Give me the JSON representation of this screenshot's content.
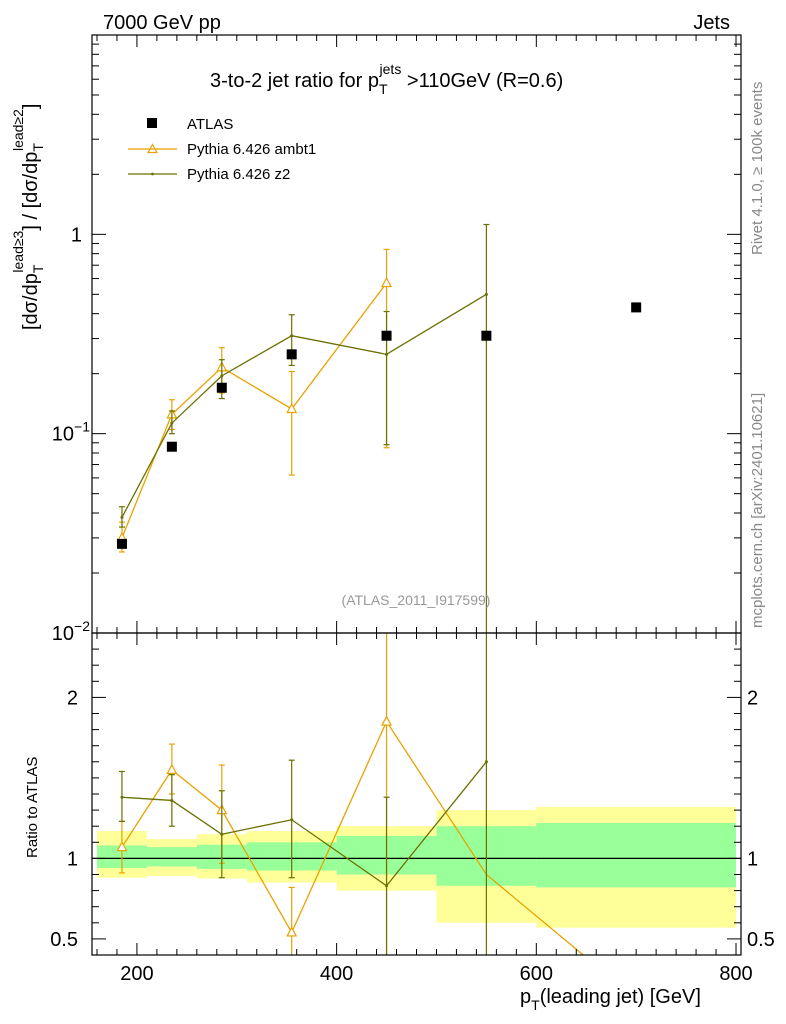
{
  "header": {
    "energy_label": "7000 GeV pp",
    "category_label": "Jets"
  },
  "side_labels": {
    "rivet": "Rivet 4.1.0, ≥ 100k events",
    "mcplots": "mcplots.cern.ch [arXiv:2401.10621]"
  },
  "chart_data": {
    "type": "scatter",
    "title": "3-to-2 jet ratio for p_T^jets > 110 GeV (R=0.6)",
    "title_parts": {
      "main": "3-to-2 jet ratio for p",
      "sub": "T",
      "sup": "jets",
      "rest": " >110GeV (R=0.6)"
    },
    "analysis_id": "(ATLAS_2011_I917599)",
    "xlabel": "p_T(leading jet) [GeV]",
    "xlabel_parts": {
      "main": "p",
      "sub": "T",
      "rest": "(leading jet) [GeV]"
    },
    "xlim": [
      155,
      805
    ],
    "x_ticks": [
      200,
      400,
      600,
      800
    ],
    "x_tick_labels": [
      "200",
      "400",
      "600",
      "800"
    ],
    "upper_panel": {
      "ylabel": "[dσ/dp_T^lead≥3] / [dσ/dp_T^lead≥2]",
      "ylabel_parts": {
        "open": "[dσ/dp",
        "sub": "T",
        "sup1": "lead≥3",
        "mid": "] / [dσ/dp",
        "sup2": "lead≥2",
        "close": "]"
      },
      "yscale": "log",
      "ylim": [
        0.01,
        10
      ],
      "y_ticks": [
        0.01,
        0.1,
        1
      ],
      "y_tick_labels": [
        {
          "base": "10",
          "exp": "−2"
        },
        {
          "base": "10",
          "exp": "−1"
        },
        {
          "base": "1",
          "exp": ""
        }
      ],
      "legend_position": "top-left"
    },
    "lower_panel": {
      "ylabel": "Ratio to ATLAS",
      "ylim": [
        0.4,
        2.4
      ],
      "y_ticks": [
        0.5,
        1,
        2
      ],
      "y_tick_labels": [
        "0.5",
        "1",
        "2"
      ]
    },
    "series": [
      {
        "name": "ATLAS",
        "kind": "data",
        "color": "#000000",
        "x": [
          185,
          235,
          285,
          355,
          450,
          550,
          700
        ],
        "y": [
          0.028,
          0.086,
          0.17,
          0.25,
          0.31,
          0.31,
          0.43
        ]
      },
      {
        "name": "Pythia 6.426 ambt1",
        "kind": "mc",
        "color": "#e8a200",
        "x": [
          185,
          235,
          285,
          355,
          450
        ],
        "y": [
          0.03,
          0.125,
          0.215,
          0.133,
          0.57
        ],
        "y_err_low": [
          0.0255,
          0.105,
          0.16,
          0.062,
          0.085
        ],
        "y_err_high": [
          0.036,
          0.148,
          0.27,
          0.205,
          0.84
        ],
        "ratio": [
          1.07,
          1.55,
          1.3,
          0.54,
          1.85
        ],
        "ratio_err_low": [
          0.91,
          1.4,
          0.97,
          0.25,
          0.28
        ],
        "ratio_err_high": [
          1.23,
          1.71,
          1.58,
          0.82,
          3.0
        ],
        "ratio_tail": {
          "x": [
            550,
            647
          ],
          "ratio": [
            0.9,
            0.4
          ]
        }
      },
      {
        "name": "Pythia 6.426 z2",
        "kind": "mc",
        "color": "#6b7000",
        "x": [
          185,
          235,
          285,
          355,
          450,
          550
        ],
        "y": [
          0.038,
          0.113,
          0.195,
          0.31,
          0.25,
          0.5
        ],
        "y_err_low": [
          0.034,
          0.1,
          0.15,
          0.22,
          0.088,
          0.0
        ],
        "y_err_high": [
          0.043,
          0.13,
          0.235,
          0.395,
          0.41,
          1.12
        ],
        "ratio": [
          1.38,
          1.36,
          1.15,
          1.24,
          0.83,
          1.6
        ],
        "ratio_err_low": [
          1.23,
          1.2,
          0.88,
          0.88,
          0.28,
          0.28
        ],
        "ratio_err_high": [
          1.54,
          1.52,
          1.42,
          1.61,
          1.38,
          3.0
        ]
      }
    ],
    "uncertainty_bands": {
      "edges": [
        160,
        210,
        260,
        310,
        400,
        500,
        600,
        800
      ],
      "inner_low": [
        0.94,
        0.95,
        0.935,
        0.925,
        0.9,
        0.83,
        0.82
      ],
      "inner_high": [
        1.08,
        1.07,
        1.085,
        1.1,
        1.14,
        1.2,
        1.22
      ],
      "outer_low": [
        0.88,
        0.89,
        0.875,
        0.85,
        0.8,
        0.6,
        0.57
      ],
      "outer_high": [
        1.17,
        1.12,
        1.15,
        1.17,
        1.2,
        1.3,
        1.32
      ],
      "inner_color": "#99ff99",
      "outer_color": "#ffff99"
    }
  }
}
